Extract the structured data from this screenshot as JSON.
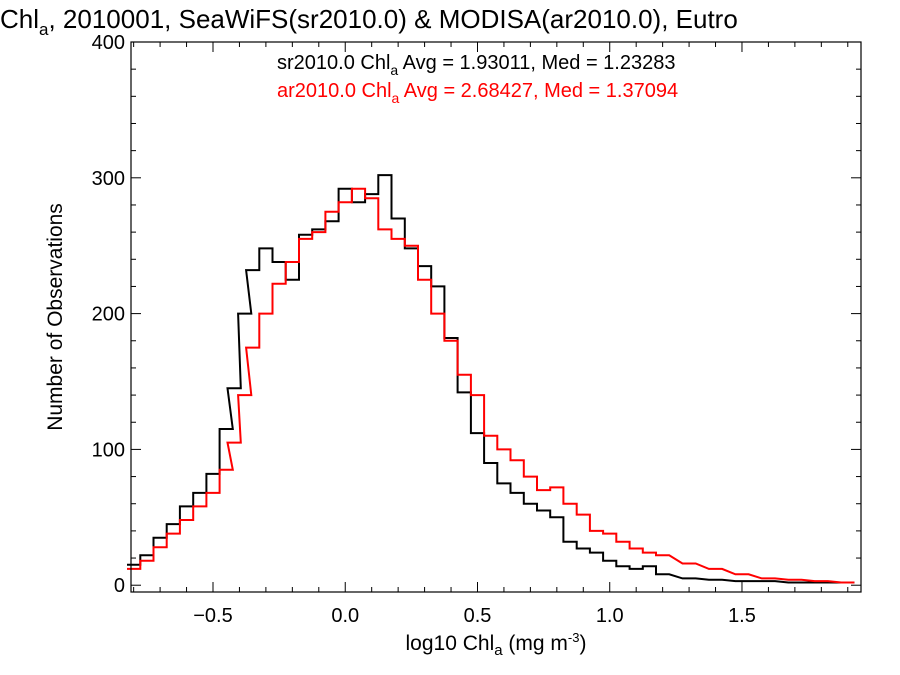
{
  "chart_data": {
    "type": "line",
    "title": {
      "pre": "Chl",
      "sub": "a",
      "post": ", 2010001, SeaWiFS(sr2010.0) & MODISA(ar2010.0), Eutro"
    },
    "xlabel": {
      "pre": "log10 Chl",
      "sub": "a",
      "mid": " (mg m",
      "sup": "-3",
      "post": ")"
    },
    "ylabel": "Number of Observations",
    "xlim": [
      -0.81,
      1.95
    ],
    "ylim": [
      -5,
      400
    ],
    "x_ticks": [
      -0.5,
      0.0,
      0.5,
      1.0,
      1.5
    ],
    "x_tick_labels": [
      "−0.5",
      "0.0",
      "0.5",
      "1.0",
      "1.5"
    ],
    "y_ticks": [
      0,
      100,
      200,
      300,
      400
    ],
    "y_tick_labels": [
      "0",
      "100",
      "200",
      "300",
      "400"
    ],
    "grid": false,
    "legend_position": "top-center",
    "series": [
      {
        "name_pre": "sr2010.0 Chl",
        "name_sub": "a",
        "name_post": " Avg = 1.93011, Med = 1.23283",
        "color": "#000000",
        "x": [
          -0.8,
          -0.75,
          -0.7,
          -0.65,
          -0.6,
          -0.55,
          -0.5,
          -0.45,
          -0.42,
          -0.38,
          -0.35,
          -0.3,
          -0.25,
          -0.2,
          -0.15,
          -0.1,
          -0.05,
          0.0,
          0.05,
          0.1,
          0.15,
          0.2,
          0.25,
          0.3,
          0.35,
          0.4,
          0.45,
          0.5,
          0.55,
          0.6,
          0.65,
          0.7,
          0.75,
          0.8,
          0.85,
          0.9,
          0.95,
          1.0,
          1.05,
          1.1,
          1.15,
          1.2,
          1.3,
          1.4,
          1.5,
          1.6,
          1.7,
          1.8,
          1.9
        ],
        "y": [
          15,
          22,
          35,
          45,
          58,
          68,
          82,
          115,
          145,
          200,
          232,
          248,
          238,
          225,
          258,
          262,
          268,
          292,
          282,
          288,
          302,
          270,
          248,
          235,
          220,
          182,
          142,
          112,
          90,
          75,
          68,
          60,
          55,
          50,
          32,
          27,
          24,
          18,
          14,
          12,
          14,
          8,
          5,
          4,
          3,
          3,
          2,
          2,
          2
        ]
      },
      {
        "name_pre": "ar2010.0 Chl",
        "name_sub": "a",
        "name_post": " Avg = 2.68427, Med = 1.37094",
        "color": "#ff0000",
        "x": [
          -0.8,
          -0.75,
          -0.7,
          -0.65,
          -0.6,
          -0.55,
          -0.5,
          -0.45,
          -0.42,
          -0.38,
          -0.35,
          -0.3,
          -0.25,
          -0.2,
          -0.15,
          -0.1,
          -0.05,
          0.0,
          0.05,
          0.1,
          0.15,
          0.2,
          0.25,
          0.3,
          0.35,
          0.4,
          0.45,
          0.5,
          0.55,
          0.6,
          0.65,
          0.7,
          0.75,
          0.8,
          0.85,
          0.9,
          0.95,
          1.0,
          1.05,
          1.1,
          1.15,
          1.2,
          1.3,
          1.4,
          1.5,
          1.6,
          1.7,
          1.8,
          1.9
        ],
        "y": [
          12,
          18,
          28,
          38,
          48,
          58,
          68,
          85,
          105,
          140,
          175,
          200,
          222,
          238,
          255,
          260,
          275,
          282,
          292,
          285,
          262,
          255,
          250,
          225,
          200,
          180,
          155,
          140,
          110,
          100,
          92,
          80,
          70,
          72,
          60,
          52,
          40,
          38,
          32,
          27,
          24,
          22,
          16,
          12,
          8,
          5,
          4,
          3,
          2
        ]
      }
    ]
  }
}
